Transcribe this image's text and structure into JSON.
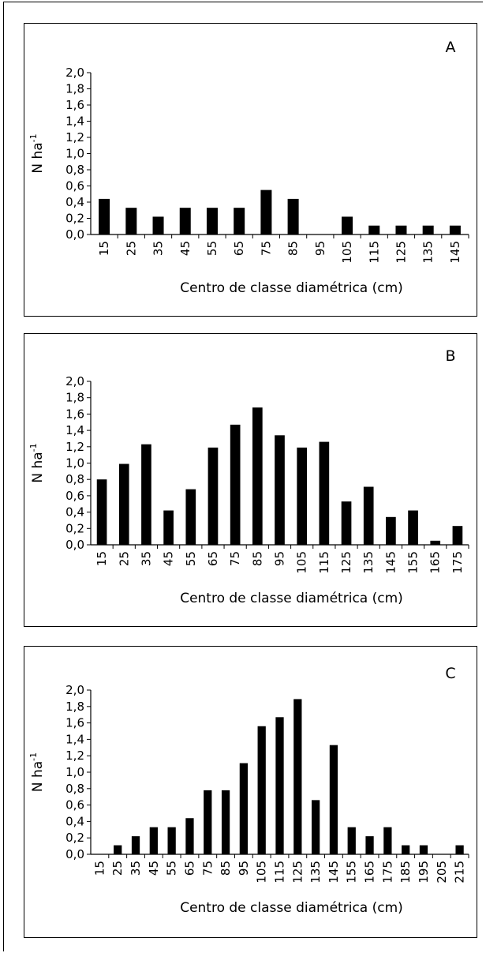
{
  "chart_data": [
    {
      "type": "bar",
      "panel_label": "A",
      "ylabel": "N ha",
      "ylabel_superscript": "-1",
      "xlabel": "Centro de classe diamétrica (cm)",
      "ylim": [
        0,
        2.0
      ],
      "yticks": [
        "0,0",
        "0,2",
        "0,4",
        "0,6",
        "0,8",
        "1,0",
        "1,2",
        "1,4",
        "1,6",
        "1,8",
        "2,0"
      ],
      "categories": [
        "15",
        "25",
        "35",
        "45",
        "55",
        "65",
        "75",
        "85",
        "95",
        "105",
        "115",
        "125",
        "135",
        "145"
      ],
      "values": [
        0.44,
        0.33,
        0.22,
        0.33,
        0.33,
        0.33,
        0.55,
        0.44,
        0.0,
        0.22,
        0.11,
        0.11,
        0.11,
        0.11
      ],
      "bar_color": "#000000"
    },
    {
      "type": "bar",
      "panel_label": "B",
      "ylabel": "N ha",
      "ylabel_superscript": "-1",
      "xlabel": "Centro de classe diamétrica (cm)",
      "ylim": [
        0,
        2.0
      ],
      "yticks": [
        "0,0",
        "0,2",
        "0,4",
        "0,6",
        "0,8",
        "1,0",
        "1,2",
        "1,4",
        "1,6",
        "1,8",
        "2,0"
      ],
      "categories": [
        "15",
        "25",
        "35",
        "45",
        "55",
        "65",
        "75",
        "85",
        "95",
        "105",
        "115",
        "125",
        "135",
        "145",
        "155",
        "165",
        "175"
      ],
      "values": [
        0.8,
        0.99,
        1.23,
        0.42,
        0.68,
        1.19,
        1.47,
        1.68,
        1.34,
        1.19,
        1.26,
        0.53,
        0.71,
        0.34,
        0.42,
        0.05,
        0.23
      ],
      "bar_color": "#000000"
    },
    {
      "type": "bar",
      "panel_label": "C",
      "ylabel": "N ha",
      "ylabel_superscript": "-1",
      "xlabel": "Centro de classe diamétrica (cm)",
      "ylim": [
        0,
        2.0
      ],
      "yticks": [
        "0,0",
        "0,2",
        "0,4",
        "0,6",
        "0,8",
        "1,0",
        "1,2",
        "1,4",
        "1,6",
        "1,8",
        "2,0"
      ],
      "categories": [
        "15",
        "25",
        "35",
        "45",
        "55",
        "65",
        "75",
        "85",
        "95",
        "105",
        "115",
        "125",
        "135",
        "145",
        "155",
        "165",
        "175",
        "185",
        "195",
        "205",
        "215"
      ],
      "values": [
        0.0,
        0.11,
        0.22,
        0.33,
        0.33,
        0.44,
        0.78,
        0.78,
        1.11,
        1.56,
        1.67,
        1.89,
        0.66,
        1.33,
        0.33,
        0.22,
        0.33,
        0.11,
        0.11,
        0.0,
        0.11
      ],
      "bar_color": "#000000"
    }
  ]
}
